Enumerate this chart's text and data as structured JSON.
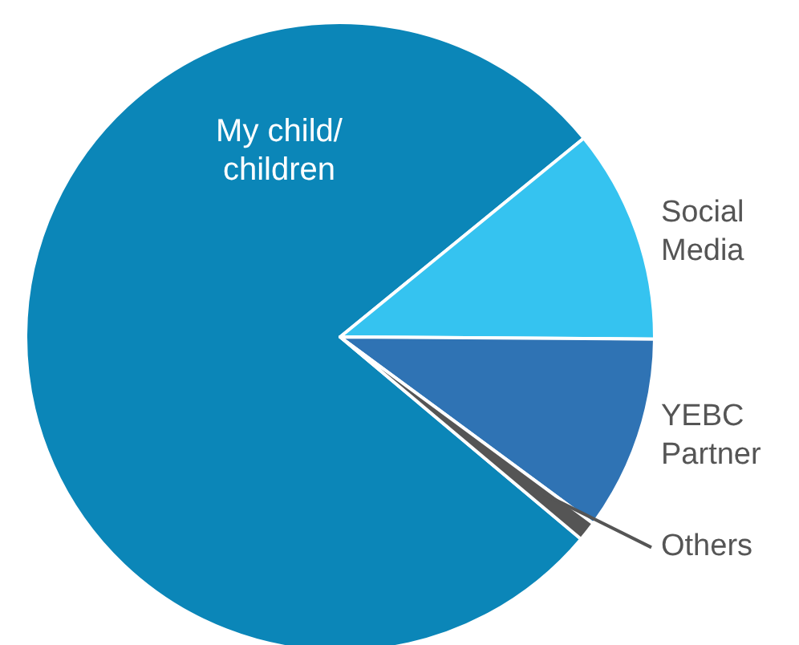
{
  "chart_data": {
    "type": "pie",
    "categories": [
      "My child/\nchildren",
      "Social\nMedia",
      "YEBC\nPartner",
      "Others"
    ],
    "values": [
      78,
      11,
      10,
      1
    ],
    "colors": [
      "#0b86b8",
      "#35c3f0",
      "#2f73b4",
      "#555555"
    ]
  }
}
